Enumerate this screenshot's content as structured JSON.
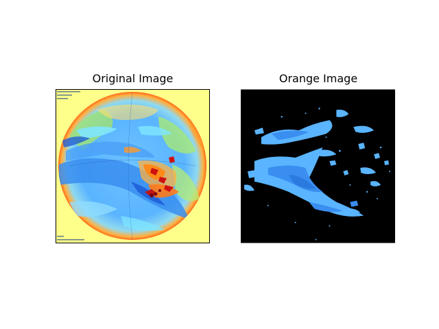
{
  "figure": {
    "panels": [
      {
        "title": "Original Image"
      },
      {
        "title": "Orange Image"
      }
    ]
  },
  "colors": {
    "page_background": "#ffffff",
    "original_background": "#fefe8a",
    "mask_background": "#000000",
    "cloud_blue_light": "#5ab4ff",
    "cloud_blue_mid": "#3a8ef0",
    "cloud_cyan": "#7fe6ff",
    "cloud_deep_blue": "#1f5fd8",
    "storm_orange": "#ff8a1a",
    "storm_red": "#d01010",
    "storm_dark_red": "#7a0010",
    "green": "#9ee07a",
    "axes_frame": "#000000"
  }
}
